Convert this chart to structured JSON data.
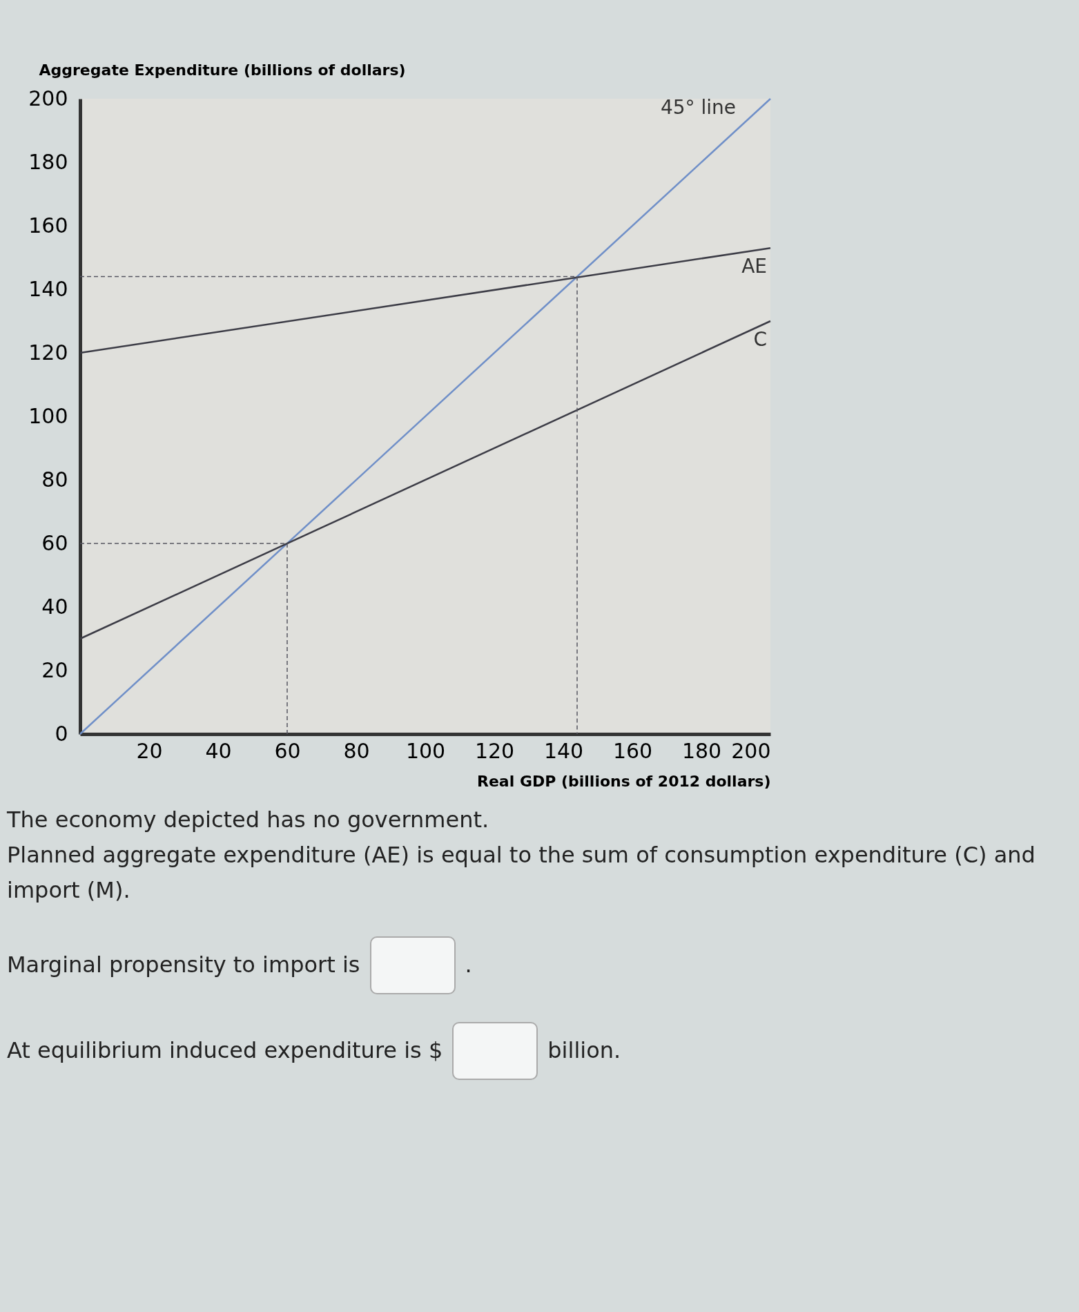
{
  "chart_data": {
    "type": "line",
    "ylabel": "Aggregate Expenditure (billions of dollars)",
    "xlabel": "Real GDP (billions of 2012 dollars)",
    "xlim": [
      0,
      200
    ],
    "ylim": [
      0,
      200
    ],
    "xticks": [
      20,
      40,
      60,
      80,
      100,
      120,
      140,
      160,
      180,
      200
    ],
    "yticks": [
      0,
      20,
      40,
      60,
      80,
      100,
      120,
      140,
      160,
      180,
      200
    ],
    "grid": false,
    "marker": "none",
    "series": [
      {
        "name": "45° line",
        "color": "#6f8fc8",
        "x": [
          0,
          200
        ],
        "values": [
          0,
          200
        ]
      },
      {
        "name": "AE",
        "color": "#3c3c46",
        "x": [
          0,
          200
        ],
        "values": [
          120,
          153
        ]
      },
      {
        "name": "C",
        "color": "#3c3c46",
        "x": [
          0,
          200
        ],
        "values": [
          30,
          130
        ]
      },
      {
        "color": "#555560",
        "line_style": "dashed",
        "x": [
          0,
          60,
          60
        ],
        "values": [
          60,
          60,
          0
        ]
      },
      {
        "color": "#555560",
        "line_style": "dashed",
        "x": [
          0,
          144,
          144
        ],
        "values": [
          144,
          144,
          0
        ]
      }
    ],
    "annotations": [
      "The economy depicted has no government.",
      "Planned aggregate expenditure (AE) is equal to the sum of consumption expenditure (C) and import (M).",
      "Marginal propensity to import is",
      ".",
      "At equilibrium induced expenditure is $",
      "billion."
    ]
  }
}
